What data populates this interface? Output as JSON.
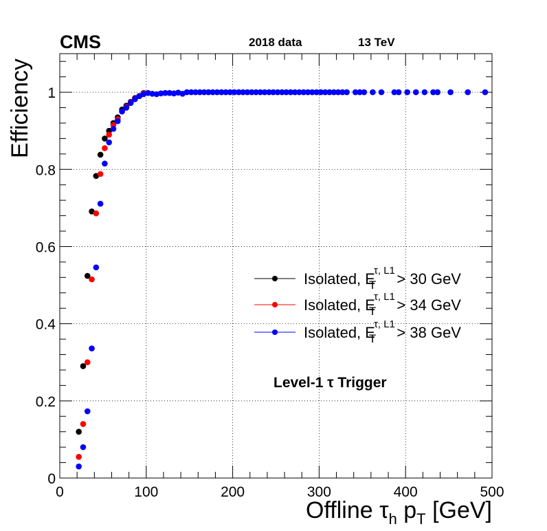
{
  "chart_data": {
    "type": "scatter",
    "experiment_label": "CMS",
    "dataset_label": "2018 data",
    "energy_label": "13 TeV",
    "annotation": "Level-1 τ Trigger",
    "xlabel": {
      "main": "Offline τ",
      "sub1": "h",
      "mid": " p",
      "sub2": "T",
      "unit": " [GeV]"
    },
    "ylabel": "Efficiency",
    "xlim": [
      0,
      500
    ],
    "ylim": [
      0,
      1.1
    ],
    "xticks": [
      0,
      100,
      200,
      300,
      400,
      500
    ],
    "xtick_labels": [
      "0",
      "100",
      "200",
      "300",
      "400",
      "500"
    ],
    "yticks": [
      0,
      0.2,
      0.4,
      0.6,
      0.8,
      1
    ],
    "ytick_labels": [
      "0",
      "0.2",
      "0.4",
      "0.6",
      "0.8",
      "1"
    ],
    "grid": true,
    "legend_position": "right",
    "series": [
      {
        "name": "Isolated, E_T^{τ, L1} > 30 GeV",
        "legend_prefix": "Isolated, E",
        "legend_sup": "τ, L1",
        "legend_sub": "T",
        "legend_suffix": " > 30 GeV",
        "color": "#000000",
        "x": [
          22,
          27,
          32,
          37,
          42,
          47,
          52,
          57,
          62,
          67,
          72,
          77,
          82,
          87,
          92,
          97
        ],
        "y": [
          0.12,
          0.29,
          0.524,
          0.691,
          0.783,
          0.838,
          0.88,
          0.9,
          0.92,
          0.935,
          0.955,
          0.965,
          0.975,
          0.985,
          0.99,
          0.998
        ]
      },
      {
        "name": "Isolated, E_T^{τ, L1} > 34 GeV",
        "legend_prefix": "Isolated, E",
        "legend_sup": "τ, L1",
        "legend_sub": "T",
        "legend_suffix": " > 34 GeV",
        "color": "#ff0000",
        "x": [
          22,
          27,
          32,
          37,
          42,
          47,
          52,
          57,
          62,
          67,
          72,
          77,
          82,
          87,
          92,
          97
        ],
        "y": [
          0.055,
          0.14,
          0.3,
          0.515,
          0.686,
          0.788,
          0.855,
          0.89,
          0.915,
          0.93,
          0.95,
          0.962,
          0.973,
          0.983,
          0.99,
          0.997
        ]
      },
      {
        "name": "Isolated, E_T^{τ, L1} > 38 GeV",
        "legend_prefix": "Isolated, E",
        "legend_sup": "τ, L1",
        "legend_sub": "T",
        "legend_suffix": " > 38 GeV",
        "color": "#0000ff",
        "x": [
          22,
          27,
          32,
          37,
          42,
          47,
          52,
          57,
          62,
          67,
          72,
          77,
          82,
          87,
          92,
          97,
          102,
          107,
          112,
          117,
          122,
          127,
          132,
          137,
          142,
          147,
          152,
          157,
          162,
          167,
          172,
          177,
          182,
          187,
          192,
          197,
          202,
          207,
          212,
          217,
          222,
          227,
          232,
          237,
          242,
          247,
          252,
          257,
          262,
          267,
          272,
          277,
          282,
          287,
          292,
          297,
          302,
          307,
          312,
          317,
          322,
          327,
          332,
          342,
          347,
          352,
          362,
          372,
          387,
          392,
          402,
          412,
          422,
          432,
          437,
          452,
          472,
          492
        ],
        "y": [
          0.03,
          0.08,
          0.173,
          0.336,
          0.546,
          0.711,
          0.815,
          0.87,
          0.905,
          0.925,
          0.95,
          0.96,
          0.972,
          0.982,
          0.99,
          0.995,
          0.998,
          0.996,
          0.995,
          0.997,
          0.998,
          0.998,
          0.997,
          0.999,
          0.996,
          1,
          1,
          1,
          1,
          1,
          1,
          1,
          1,
          1,
          1,
          1,
          1,
          1,
          1,
          1,
          1,
          1,
          1,
          1,
          1,
          1,
          1,
          1,
          1,
          1,
          1,
          1,
          1,
          1,
          1,
          1,
          1,
          1,
          1,
          1,
          1,
          1,
          1,
          1,
          1,
          1,
          1,
          1,
          1,
          1,
          1,
          1,
          1,
          1,
          1,
          1,
          1,
          1
        ]
      }
    ]
  }
}
